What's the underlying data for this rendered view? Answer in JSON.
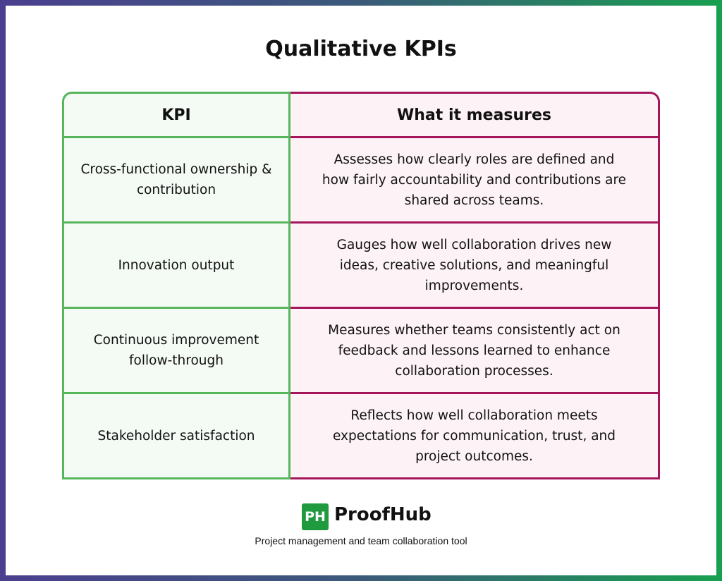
{
  "header": {
    "title": "Qualitative KPIs"
  },
  "table": {
    "columns": [
      "KPI",
      "What it measures"
    ],
    "rows": [
      [
        "Cross-functional ownership & contribution",
        "Assesses how clearly roles are defined and how fairly accountability and contributions are shared across teams."
      ],
      [
        "Innovation output",
        "Gauges how well collaboration drives new ideas, creative solutions, and meaningful improvements."
      ],
      [
        "Continuous improvement follow-through",
        "Measures whether teams consistently act on feedback and lessons learned to enhance collaboration processes."
      ],
      [
        "Stakeholder satisfaction",
        "Reflects how well collaboration meets expectations for communication, trust, and project outcomes."
      ]
    ]
  },
  "footer": {
    "logo": "PH",
    "brand": "ProofHub",
    "tagline": "Project management and team collaboration tool"
  }
}
